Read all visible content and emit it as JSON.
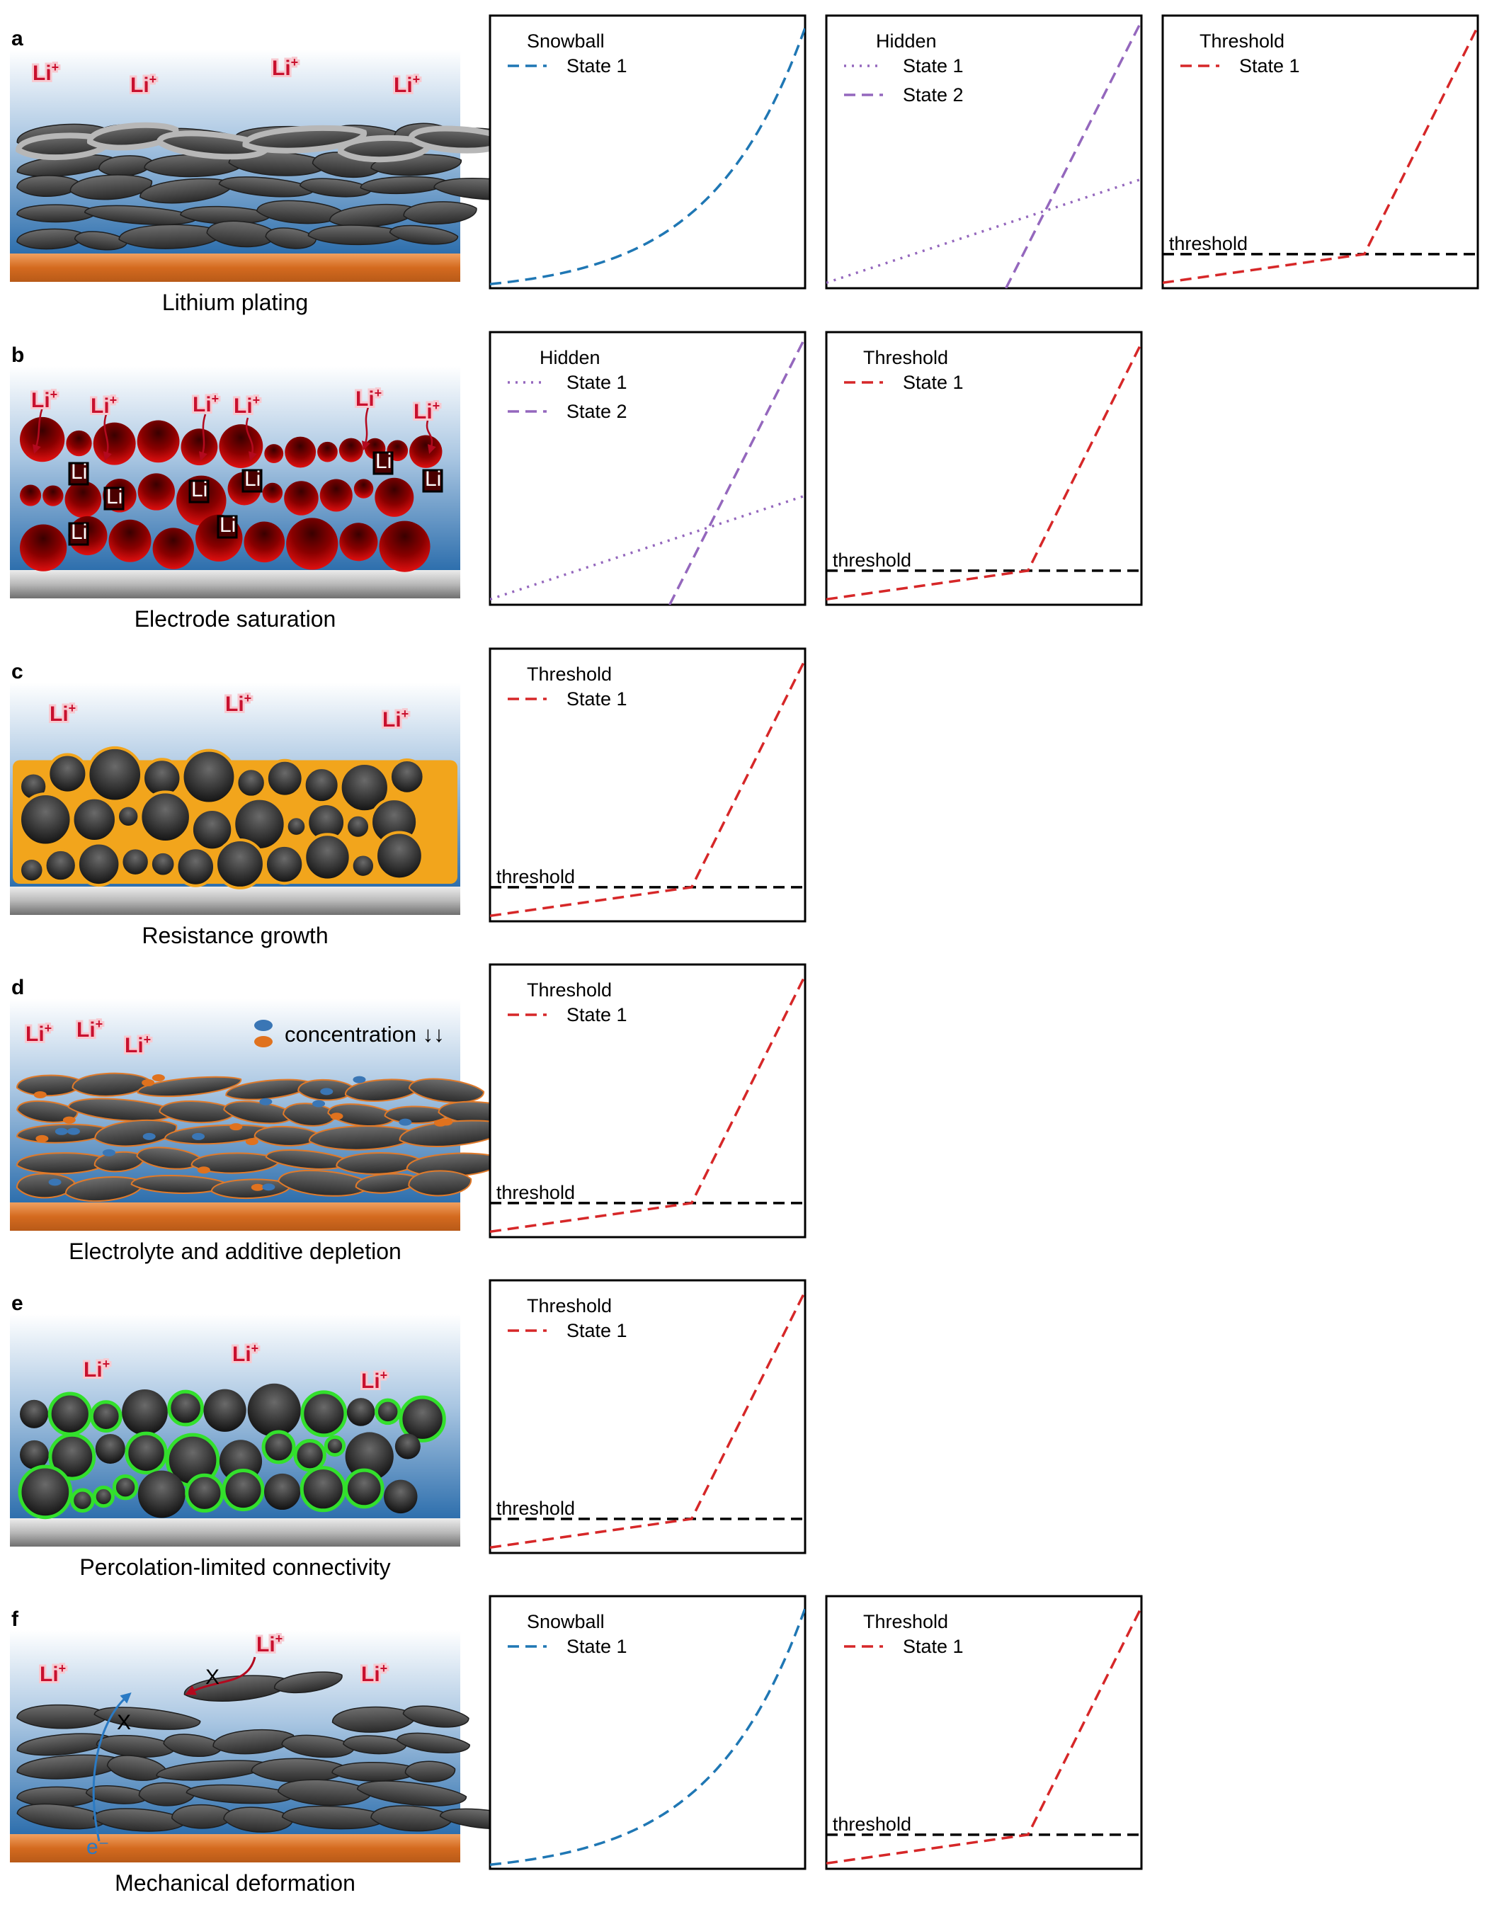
{
  "panels": [
    {
      "letter": "a",
      "caption": "Lithium plating",
      "style": "plating",
      "substrate": "copper",
      "li_labels": [
        "Li",
        "Li",
        "Li",
        "Li"
      ],
      "plots": [
        {
          "title": "Snowball",
          "kind": "snowball",
          "legend": [
            {
              "label": "State 1",
              "color": "#1f77b4",
              "dash": "dashed"
            }
          ]
        },
        {
          "title": "Hidden",
          "kind": "hidden",
          "legend": [
            {
              "label": "State 1",
              "color": "#9467bd",
              "dash": "dotted"
            },
            {
              "label": "State 2",
              "color": "#9467bd",
              "dash": "dashed"
            }
          ]
        },
        {
          "title": "Threshold",
          "kind": "threshold",
          "threshold_label": "threshold",
          "legend": [
            {
              "label": "State 1",
              "color": "#d62728",
              "dash": "dashed"
            }
          ]
        }
      ]
    },
    {
      "letter": "b",
      "caption": "Electrode saturation",
      "style": "saturation",
      "substrate": "gray",
      "li_labels": [
        "Li",
        "Li",
        "Li",
        "Li",
        "Li",
        "Li"
      ],
      "inner_letter": "Li",
      "plots": [
        {
          "title": "Hidden",
          "kind": "hidden",
          "legend": [
            {
              "label": "State 1",
              "color": "#9467bd",
              "dash": "dotted"
            },
            {
              "label": "State 2",
              "color": "#9467bd",
              "dash": "dashed"
            }
          ]
        },
        {
          "title": "Threshold",
          "kind": "threshold",
          "threshold_label": "threshold",
          "legend": [
            {
              "label": "State 1",
              "color": "#d62728",
              "dash": "dashed"
            }
          ]
        }
      ]
    },
    {
      "letter": "c",
      "caption": "Resistance growth",
      "style": "resistance",
      "substrate": "gray",
      "li_labels": [
        "Li",
        "Li",
        "Li"
      ],
      "plots": [
        {
          "title": "Threshold",
          "kind": "threshold",
          "threshold_label": "threshold",
          "legend": [
            {
              "label": "State 1",
              "color": "#d62728",
              "dash": "dashed"
            }
          ]
        }
      ]
    },
    {
      "letter": "d",
      "caption": "Electrolyte and additive depletion",
      "style": "depletion",
      "substrate": "copper",
      "li_labels": [
        "Li",
        "Li",
        "Li"
      ],
      "concentration_label": "concentration ↓↓",
      "plots": [
        {
          "title": "Threshold",
          "kind": "threshold",
          "threshold_label": "threshold",
          "legend": [
            {
              "label": "State 1",
              "color": "#d62728",
              "dash": "dashed"
            }
          ]
        }
      ]
    },
    {
      "letter": "e",
      "caption": "Percolation-limited connectivity",
      "style": "percolation",
      "substrate": "gray",
      "li_labels": [
        "Li",
        "Li",
        "Li"
      ],
      "plots": [
        {
          "title": "Threshold",
          "kind": "threshold",
          "threshold_label": "threshold",
          "legend": [
            {
              "label": "State 1",
              "color": "#d62728",
              "dash": "dashed"
            }
          ]
        }
      ]
    },
    {
      "letter": "f",
      "caption": "Mechanical deformation",
      "style": "mechanical",
      "substrate": "copper",
      "li_labels": [
        "Li",
        "Li",
        "Li"
      ],
      "blocked_mark": "X",
      "electron_label": "e⁻",
      "plots": [
        {
          "title": "Snowball",
          "kind": "snowball",
          "legend": [
            {
              "label": "State 1",
              "color": "#1f77b4",
              "dash": "dashed"
            }
          ]
        },
        {
          "title": "Threshold",
          "kind": "threshold",
          "threshold_label": "threshold",
          "legend": [
            {
              "label": "State 1",
              "color": "#d62728",
              "dash": "dashed"
            }
          ]
        }
      ]
    }
  ],
  "li_superscript": "+",
  "colors": {
    "electrolyte_top": "#ffffff",
    "electrolyte_bottom": "#2e6fad",
    "copper": "#d46a1f",
    "particle_dark": "#2b2b2b",
    "particle_light": "#6a6a6a",
    "plating_gray": "#b7b7b7",
    "saturation_red": "#b30000",
    "resistance_orange": "#f2a51c",
    "percolation_green": "#33e02c",
    "additive_blue": "#3a76b5",
    "additive_orange": "#e0721e",
    "electron_blue": "#2a7ac4",
    "ion_red": "#b3091e"
  }
}
